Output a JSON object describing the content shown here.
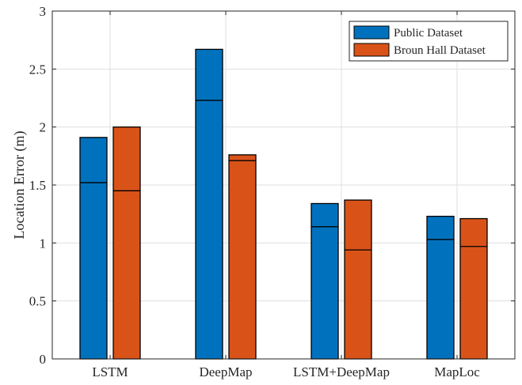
{
  "chart_data": {
    "type": "bar",
    "title": "",
    "xlabel": "",
    "ylabel": "Location Error (m)",
    "ylim": [
      0,
      3
    ],
    "yticks": [
      0,
      0.5,
      1,
      1.5,
      2,
      2.5,
      3
    ],
    "ytick_labels": [
      "0",
      "0.5",
      "1",
      "1.5",
      "2",
      "2.5",
      "3"
    ],
    "grid": true,
    "legend_position": "top-right",
    "categories": [
      "LSTM",
      "DeepMap",
      "LSTM+DeepMap",
      "MapLoc"
    ],
    "series": [
      {
        "name": "Public Dataset",
        "color": "#0072BD",
        "values": [
          1.91,
          2.67,
          1.34,
          1.23
        ],
        "inner_line_values": [
          1.52,
          2.23,
          1.14,
          1.03
        ]
      },
      {
        "name": "Broun Hall Dataset",
        "color": "#D95319",
        "values": [
          2.0,
          1.76,
          1.37,
          1.21
        ],
        "inner_line_values": [
          1.45,
          1.71,
          0.94,
          0.97
        ]
      }
    ]
  }
}
